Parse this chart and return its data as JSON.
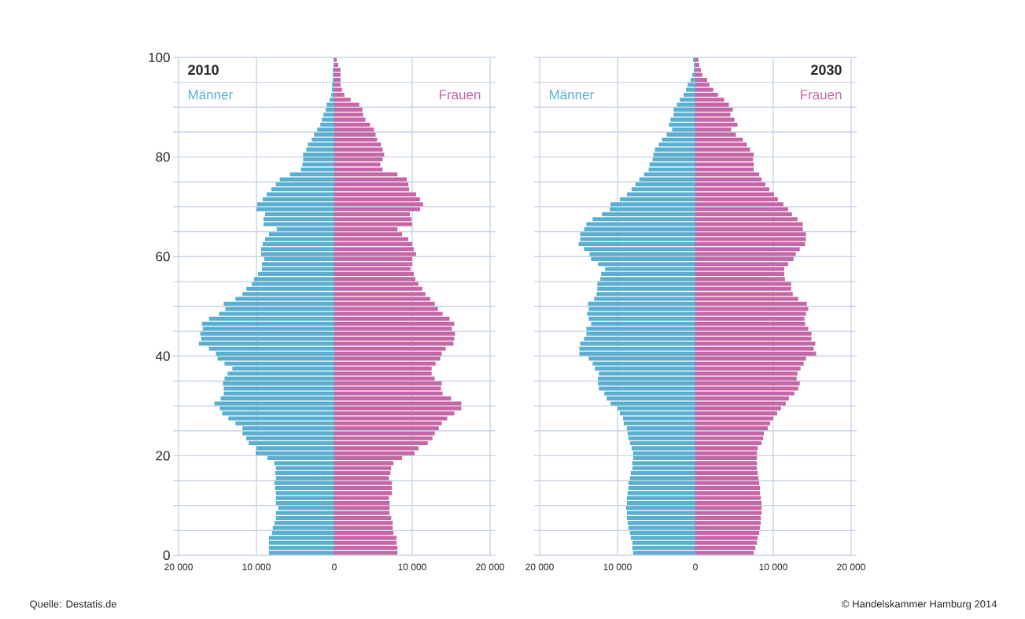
{
  "chart_data": [
    {
      "type": "bar",
      "orientation": "horizontal",
      "stacked": true,
      "title": "2010",
      "x": [
        0,
        1,
        2,
        3,
        4,
        5,
        6,
        7,
        8,
        9,
        10,
        11,
        12,
        13,
        14,
        15,
        16,
        17,
        18,
        19,
        20,
        21,
        22,
        23,
        24,
        25,
        26,
        27,
        28,
        29,
        30,
        31,
        32,
        33,
        34,
        35,
        36,
        37,
        38,
        39,
        40,
        41,
        42,
        43,
        44,
        45,
        46,
        47,
        48,
        49,
        50,
        51,
        52,
        53,
        54,
        55,
        56,
        57,
        58,
        59,
        60,
        61,
        62,
        63,
        64,
        65,
        66,
        67,
        68,
        69,
        70,
        71,
        72,
        73,
        74,
        75,
        76,
        77,
        78,
        79,
        80,
        81,
        82,
        83,
        84,
        85,
        86,
        87,
        88,
        89,
        90,
        91,
        92,
        93,
        94,
        95,
        96,
        97,
        98,
        99
      ],
      "series": [
        {
          "name": "Männer",
          "color": "#5aaed0",
          "values": [
            -8400,
            -8400,
            -8400,
            -8400,
            -8000,
            -7900,
            -7700,
            -7500,
            -7500,
            -7200,
            -7500,
            -7500,
            -7500,
            -7600,
            -7700,
            -7500,
            -7600,
            -7500,
            -7700,
            -8600,
            -10100,
            -10000,
            -11000,
            -11300,
            -11800,
            -11800,
            -12700,
            -13600,
            -14400,
            -14700,
            -15400,
            -14600,
            -14200,
            -14200,
            -14300,
            -14100,
            -13700,
            -13100,
            -14100,
            -15000,
            -15200,
            -16100,
            -17400,
            -17100,
            -17200,
            -16900,
            -17000,
            -16100,
            -14800,
            -14000,
            -14200,
            -12700,
            -11800,
            -11300,
            -10600,
            -10300,
            -9800,
            -9300,
            -9300,
            -9000,
            -9400,
            -9400,
            -9200,
            -8900,
            -8400,
            -7400,
            -9100,
            -9100,
            -8900,
            -10000,
            -9900,
            -9200,
            -8700,
            -8100,
            -7500,
            -7000,
            -5700,
            -4300,
            -4100,
            -4000,
            -4000,
            -3600,
            -3400,
            -2900,
            -2600,
            -2200,
            -1800,
            -1600,
            -1400,
            -1100,
            -1000,
            -600,
            -400,
            -300,
            -300,
            -200,
            -200,
            -200,
            -100,
            -100
          ]
        },
        {
          "name": "Frauen",
          "color": "#c766a6",
          "values": [
            8100,
            8100,
            8000,
            8000,
            7600,
            7500,
            7500,
            7300,
            7100,
            7100,
            7100,
            7000,
            7400,
            7400,
            7400,
            7000,
            7200,
            7300,
            7600,
            8700,
            10300,
            10800,
            12000,
            12600,
            12900,
            13400,
            13800,
            14500,
            15400,
            16300,
            16300,
            15000,
            13900,
            13700,
            13800,
            12900,
            12500,
            12500,
            13000,
            13600,
            13800,
            14300,
            15300,
            15400,
            15500,
            15100,
            15400,
            14800,
            13900,
            13300,
            12900,
            12300,
            11700,
            11300,
            10800,
            10400,
            10200,
            9800,
            10000,
            10000,
            10500,
            10200,
            10000,
            9500,
            8700,
            8100,
            10000,
            9900,
            9700,
            11000,
            11400,
            11000,
            10500,
            9600,
            9500,
            9300,
            8100,
            6200,
            5900,
            6200,
            6400,
            6200,
            6000,
            5500,
            5300,
            5100,
            4600,
            4000,
            3700,
            3600,
            3200,
            2100,
            1300,
            1000,
            800,
            800,
            800,
            800,
            500,
            300
          ]
        }
      ],
      "xlim": [
        -20000,
        20000
      ],
      "xticks": [
        {
          "value": -20000,
          "label": "20 000"
        },
        {
          "value": -10000,
          "label": "10 000"
        },
        0,
        {
          "value": 10000,
          "label": "10 000"
        },
        {
          "value": 20000,
          "label": "20 000"
        }
      ],
      "ylim": [
        0,
        100
      ],
      "yticks": [
        0,
        {
          "value": 5,
          "label": null
        },
        {
          "value": 10,
          "label": null
        },
        {
          "value": 15,
          "label": null
        },
        20,
        {
          "value": 25,
          "label": null
        },
        {
          "value": 30,
          "label": null
        },
        {
          "value": 35,
          "label": null
        },
        40,
        {
          "value": 45,
          "label": null
        },
        {
          "value": 50,
          "label": null
        },
        {
          "value": 55,
          "label": null
        },
        60,
        {
          "value": 65,
          "label": null
        },
        {
          "value": 70,
          "label": null
        },
        {
          "value": 75,
          "label": null
        },
        80,
        {
          "value": 85,
          "label": null
        },
        {
          "value": 90,
          "label": null
        },
        {
          "value": 95,
          "label": null
        },
        100
      ],
      "grid": true,
      "annotations": [
        "Quelle: Destatis.de"
      ]
    },
    {
      "type": "bar",
      "orientation": "horizontal",
      "stacked": true,
      "title": "2030",
      "x": [
        0,
        1,
        2,
        3,
        4,
        5,
        6,
        7,
        8,
        9,
        10,
        11,
        12,
        13,
        14,
        15,
        16,
        17,
        18,
        19,
        20,
        21,
        22,
        23,
        24,
        25,
        26,
        27,
        28,
        29,
        30,
        31,
        32,
        33,
        34,
        35,
        36,
        37,
        38,
        39,
        40,
        41,
        42,
        43,
        44,
        45,
        46,
        47,
        48,
        49,
        50,
        51,
        52,
        53,
        54,
        55,
        56,
        57,
        58,
        59,
        60,
        61,
        62,
        63,
        64,
        65,
        66,
        67,
        68,
        69,
        70,
        71,
        72,
        73,
        74,
        75,
        76,
        77,
        78,
        79,
        80,
        81,
        82,
        83,
        84,
        85,
        86,
        87,
        88,
        89,
        90,
        91,
        92,
        93,
        94,
        95,
        96,
        97,
        98,
        99
      ],
      "series": [
        {
          "name": "Männer",
          "color": "#5aaed0",
          "values": [
            -8000,
            -8100,
            -8100,
            -8300,
            -8400,
            -8600,
            -8700,
            -8800,
            -8800,
            -8900,
            -8800,
            -8800,
            -8700,
            -8600,
            -8600,
            -8400,
            -8300,
            -8100,
            -8100,
            -8000,
            -8000,
            -8200,
            -8400,
            -8600,
            -8700,
            -8800,
            -9200,
            -9300,
            -9700,
            -10000,
            -10900,
            -11400,
            -11700,
            -12400,
            -12500,
            -12500,
            -12400,
            -12900,
            -13200,
            -13700,
            -14900,
            -14900,
            -14800,
            -14300,
            -14000,
            -14000,
            -13400,
            -13700,
            -13900,
            -13700,
            -13800,
            -13000,
            -12700,
            -12600,
            -12600,
            -12200,
            -12100,
            -11600,
            -12500,
            -13400,
            -13600,
            -14300,
            -15000,
            -14800,
            -14800,
            -14300,
            -14000,
            -13200,
            -12000,
            -11000,
            -10900,
            -9700,
            -8800,
            -8200,
            -7700,
            -7200,
            -6600,
            -6000,
            -5900,
            -5500,
            -5400,
            -5200,
            -4700,
            -4300,
            -3700,
            -3000,
            -3400,
            -3200,
            -2800,
            -2800,
            -2400,
            -2000,
            -1500,
            -1200,
            -1000,
            -600,
            -400,
            -200,
            -200,
            -300
          ]
        },
        {
          "name": "Frauen",
          "color": "#c766a6",
          "values": [
            7500,
            7700,
            7900,
            8000,
            8200,
            8300,
            8400,
            8400,
            8500,
            8500,
            8500,
            8400,
            8300,
            8300,
            8200,
            8100,
            8000,
            7900,
            7900,
            7900,
            7900,
            8000,
            8500,
            8700,
            8800,
            9300,
            9600,
            10000,
            10500,
            11000,
            11600,
            12000,
            12700,
            13200,
            13400,
            13000,
            13100,
            13500,
            13900,
            14200,
            15500,
            15200,
            15400,
            14900,
            14900,
            14500,
            14100,
            14000,
            14200,
            14500,
            14300,
            13200,
            12500,
            12300,
            12300,
            11500,
            11400,
            11400,
            11900,
            12600,
            12900,
            13400,
            14100,
            14200,
            14200,
            13800,
            13800,
            13100,
            12400,
            11900,
            11300,
            10600,
            10100,
            9500,
            9000,
            8500,
            8200,
            7500,
            7500,
            7400,
            7500,
            7000,
            6600,
            6100,
            5200,
            4600,
            5400,
            5000,
            4500,
            4800,
            4300,
            3700,
            2900,
            2300,
            1800,
            1500,
            900,
            700,
            500,
            400
          ]
        }
      ],
      "xlim": [
        -20000,
        20000
      ],
      "xticks": [
        {
          "value": -20000,
          "label": "20 000"
        },
        {
          "value": -10000,
          "label": "10 000"
        },
        0,
        {
          "value": 10000,
          "label": "10 000"
        },
        {
          "value": 20000,
          "label": "20 000"
        }
      ],
      "ylim": [
        0,
        100
      ],
      "yticks": [
        0,
        {
          "value": 5,
          "label": null
        },
        {
          "value": 10,
          "label": null
        },
        {
          "value": 15,
          "label": null
        },
        20,
        {
          "value": 25,
          "label": null
        },
        {
          "value": 30,
          "label": null
        },
        {
          "value": 35,
          "label": null
        },
        40,
        {
          "value": 45,
          "label": null
        },
        {
          "value": 50,
          "label": null
        },
        {
          "value": 55,
          "label": null
        },
        60,
        {
          "value": 65,
          "label": null
        },
        {
          "value": 70,
          "label": null
        },
        {
          "value": 75,
          "label": null
        },
        80,
        {
          "value": 85,
          "label": null
        },
        {
          "value": 90,
          "label": null
        },
        {
          "value": 95,
          "label": null
        },
        100
      ],
      "tick_labels": "x",
      "grid": true,
      "annotations": [
        "© Handelskammer Hamburg 2014"
      ]
    }
  ]
}
